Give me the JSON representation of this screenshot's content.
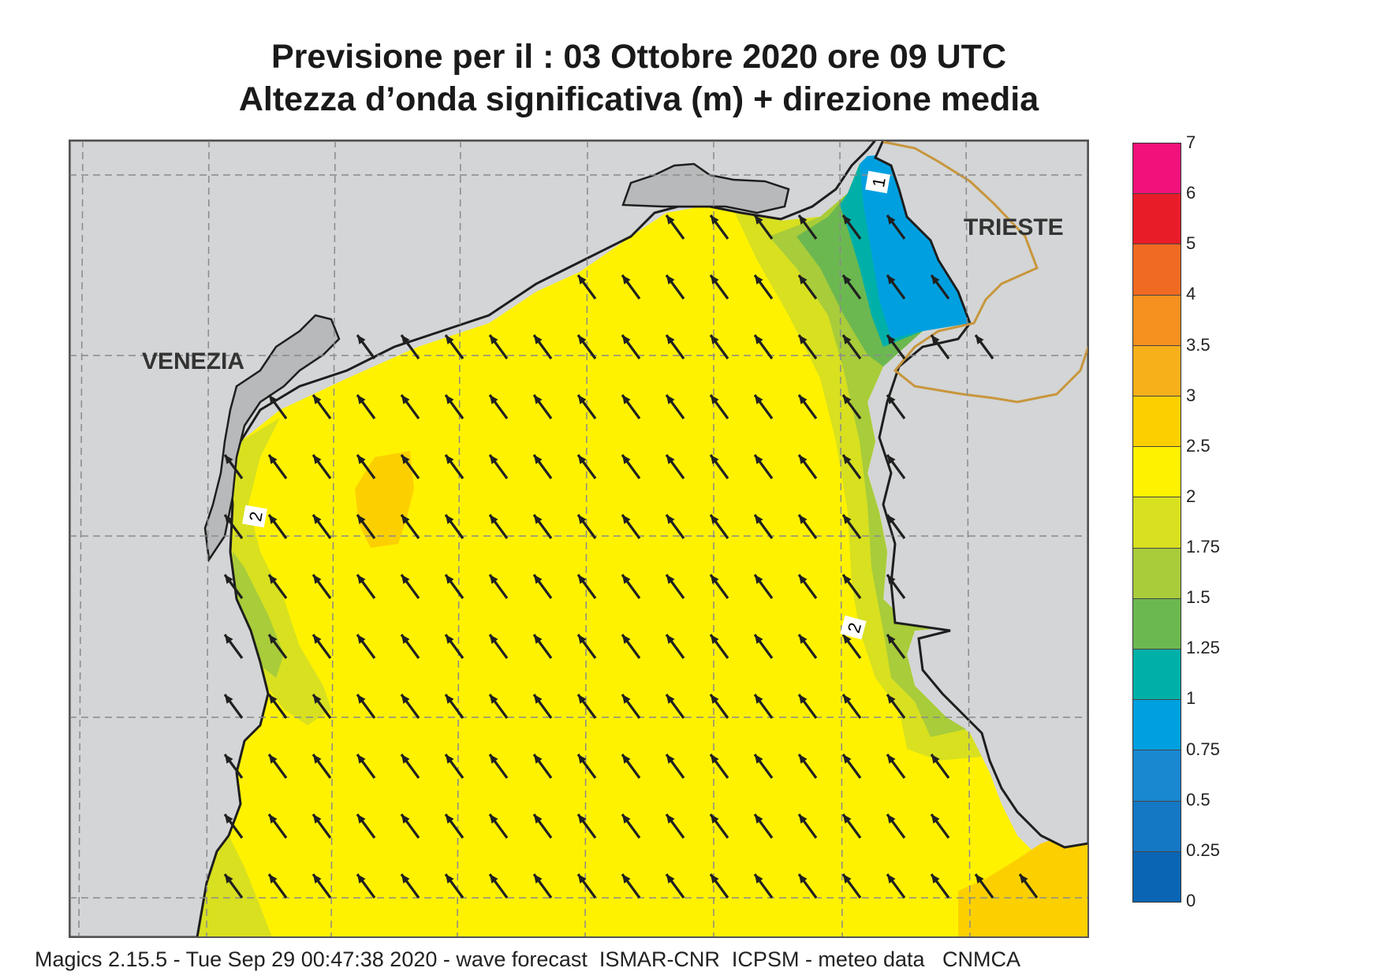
{
  "title": {
    "line1": "Previsione per il  :  03  Ottobre  2020   ore 09 UTC",
    "line2": "Altezza d’onda significativa (m) + direzione media"
  },
  "places": {
    "venezia": "VENEZIA",
    "trieste": "TRIESTE"
  },
  "contour_labels": [
    "2",
    "2",
    "1"
  ],
  "legend": {
    "ticks": [
      "7",
      "6",
      "5",
      "4",
      "3.5",
      "3",
      "2.5",
      "2",
      "1.75",
      "1.5",
      "1.25",
      "1",
      "0.75",
      "0.5",
      "0.25",
      "0"
    ],
    "colors_top_to_bottom": [
      "#f0127a",
      "#e81c28",
      "#f06a22",
      "#f6901e",
      "#f8b01a",
      "#fcd000",
      "#fff200",
      "#d8e020",
      "#a8cc3a",
      "#6cb850",
      "#00b0a8",
      "#00a0e0",
      "#1a88d0",
      "#1478c4",
      "#0a66b4"
    ]
  },
  "colors": {
    "land": "#d3d5d6",
    "coast": "#1e1e1e",
    "lagoon": "#b8b9ba",
    "border": "#c8963c",
    "grid": "#8a8a8a",
    "arrow": "#202020"
  },
  "footer": "Magics 2.15.5 - Tue Sep 29 00:47:38 2020 - wave forecast  ISMAR-CNR  ICPSM - meteo data   CNMCA"
}
